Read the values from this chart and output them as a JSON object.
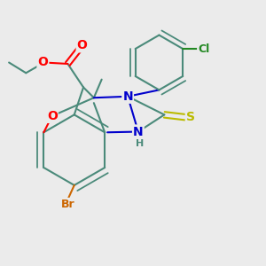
{
  "background_color": "#ebebeb",
  "bond_color": "#4a8a7a",
  "atom_colors": {
    "O": "#ff0000",
    "N": "#0000cc",
    "S": "#bbbb00",
    "Br": "#cc6600",
    "Cl": "#228822",
    "C": "#4a8a7a",
    "H": "#4a8a7a"
  },
  "figsize": [
    3.0,
    3.0
  ],
  "dpi": 100
}
